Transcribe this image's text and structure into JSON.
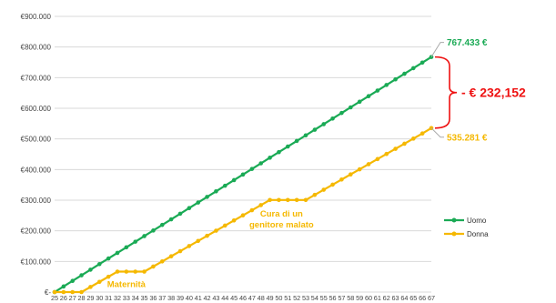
{
  "chart_data": {
    "type": "line",
    "title": "",
    "xlabel": "",
    "ylabel": "",
    "x": [
      25,
      26,
      27,
      28,
      29,
      30,
      31,
      32,
      33,
      34,
      35,
      36,
      37,
      38,
      39,
      40,
      41,
      42,
      43,
      44,
      45,
      46,
      47,
      48,
      49,
      50,
      51,
      52,
      53,
      54,
      55,
      56,
      57,
      58,
      59,
      60,
      61,
      62,
      63,
      64,
      65,
      66,
      67
    ],
    "ylim": [
      0,
      900000
    ],
    "yticks": [
      {
        "value": 0,
        "label": "€-"
      },
      {
        "value": 100000,
        "label": "€100.000"
      },
      {
        "value": 200000,
        "label": "€200.000"
      },
      {
        "value": 300000,
        "label": "€300.000"
      },
      {
        "value": 400000,
        "label": "€400.000"
      },
      {
        "value": 500000,
        "label": "€500.000"
      },
      {
        "value": 600000,
        "label": "€600.000"
      },
      {
        "value": 700000,
        "label": "€700.000"
      },
      {
        "value": 800000,
        "label": "€800.000"
      },
      {
        "value": 900000,
        "label": "€900.000"
      }
    ],
    "grid": true,
    "legend_position": "right",
    "series": [
      {
        "name": "Uomo",
        "color": "#1aaa55",
        "values": [
          0,
          18272,
          36545,
          54817,
          73090,
          91362,
          109635,
          127907,
          146180,
          164452,
          182725,
          200997,
          219270,
          237542,
          255815,
          274087,
          292360,
          310632,
          328905,
          347177,
          365450,
          383722,
          401995,
          420267,
          438540,
          456812,
          475085,
          493357,
          511630,
          529902,
          548175,
          566447,
          584720,
          602992,
          621265,
          639537,
          657810,
          676082,
          694355,
          712627,
          730900,
          749172,
          767433
        ],
        "end_label": "767.433 €"
      },
      {
        "name": "Donna",
        "color": "#f5b800",
        "values": [
          0,
          0,
          0,
          0,
          16700,
          33400,
          50100,
          66800,
          66800,
          66800,
          66800,
          83500,
          100200,
          116900,
          133600,
          150300,
          167000,
          183700,
          200400,
          217100,
          233800,
          250500,
          267200,
          283900,
          300600,
          300600,
          300600,
          300600,
          300600,
          317300,
          334000,
          350700,
          367400,
          384100,
          400800,
          417500,
          434200,
          450900,
          467600,
          484300,
          501000,
          517700,
          535281
        ],
        "end_label": "535.281 €"
      }
    ],
    "annotations": [
      {
        "text": "Maternità",
        "color": "#f5b800"
      },
      {
        "text_lines": [
          "Cura di un",
          "genitore malato"
        ],
        "color": "#f5b800"
      }
    ],
    "difference": {
      "text": "- € 232,152",
      "color": "#ee1111"
    }
  }
}
